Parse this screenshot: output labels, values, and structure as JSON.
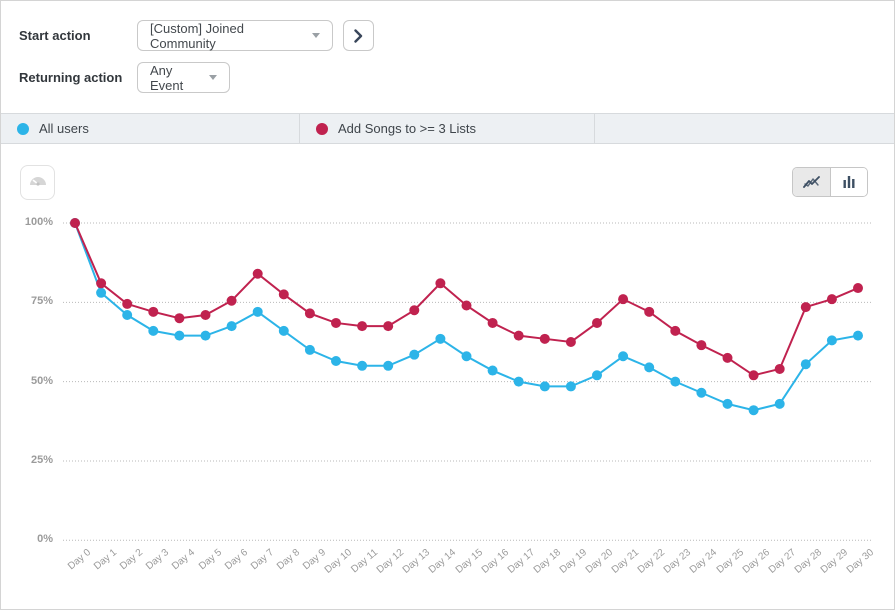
{
  "controls": {
    "start_action": {
      "label": "Start action",
      "value": "[Custom] Joined Community"
    },
    "returning_action": {
      "label": "Returning action",
      "value": "Any Event"
    }
  },
  "legend": {
    "items": [
      {
        "label": "All users",
        "color": "#2cb4e8"
      },
      {
        "label": "Add Songs to >= 3 Lists",
        "color": "#c0224f"
      }
    ]
  },
  "toolbar": {
    "chart_type_options": [
      "line",
      "bar"
    ],
    "selected_chart_type": "line"
  },
  "chart_data": {
    "type": "line",
    "x_categories": [
      "Day 0",
      "Day 1",
      "Day 2",
      "Day 3",
      "Day 4",
      "Day 5",
      "Day 6",
      "Day 7",
      "Day 8",
      "Day 9",
      "Day 10",
      "Day 11",
      "Day 12",
      "Day 13",
      "Day 14",
      "Day 15",
      "Day 16",
      "Day 17",
      "Day 18",
      "Day 19",
      "Day 20",
      "Day 21",
      "Day 22",
      "Day 23",
      "Day 24",
      "Day 25",
      "Day 26",
      "Day 27",
      "Day 28",
      "Day 29",
      "Day 30"
    ],
    "series": [
      {
        "name": "All users",
        "color": "#2cb4e8",
        "values": [
          100,
          78,
          71,
          66,
          64.5,
          64.5,
          67.5,
          72,
          66,
          60,
          56.5,
          55,
          55,
          58.5,
          63.5,
          58,
          53.5,
          50,
          48.5,
          48.5,
          52,
          58,
          54.5,
          50,
          46.5,
          43,
          41,
          43,
          55.5,
          63,
          64.5
        ]
      },
      {
        "name": "Add Songs to >= 3 Lists",
        "color": "#c0224f",
        "values": [
          100,
          81,
          74.5,
          72,
          70,
          71,
          75.5,
          84,
          77.5,
          71.5,
          68.5,
          67.5,
          67.5,
          72.5,
          81,
          74,
          68.5,
          64.5,
          63.5,
          62.5,
          68.5,
          76,
          72,
          66,
          61.5,
          57.5,
          52,
          54,
          73.5,
          76,
          79.5
        ]
      }
    ],
    "y_ticks": [
      {
        "label": "100%",
        "value": 100
      },
      {
        "label": "75%",
        "value": 75
      },
      {
        "label": "50%",
        "value": 50
      },
      {
        "label": "25%",
        "value": 25
      },
      {
        "label": "0%",
        "value": 0
      }
    ],
    "ylim": [
      0,
      100
    ],
    "grid": "horizontal-dotted",
    "legend_position": "top-bar"
  }
}
